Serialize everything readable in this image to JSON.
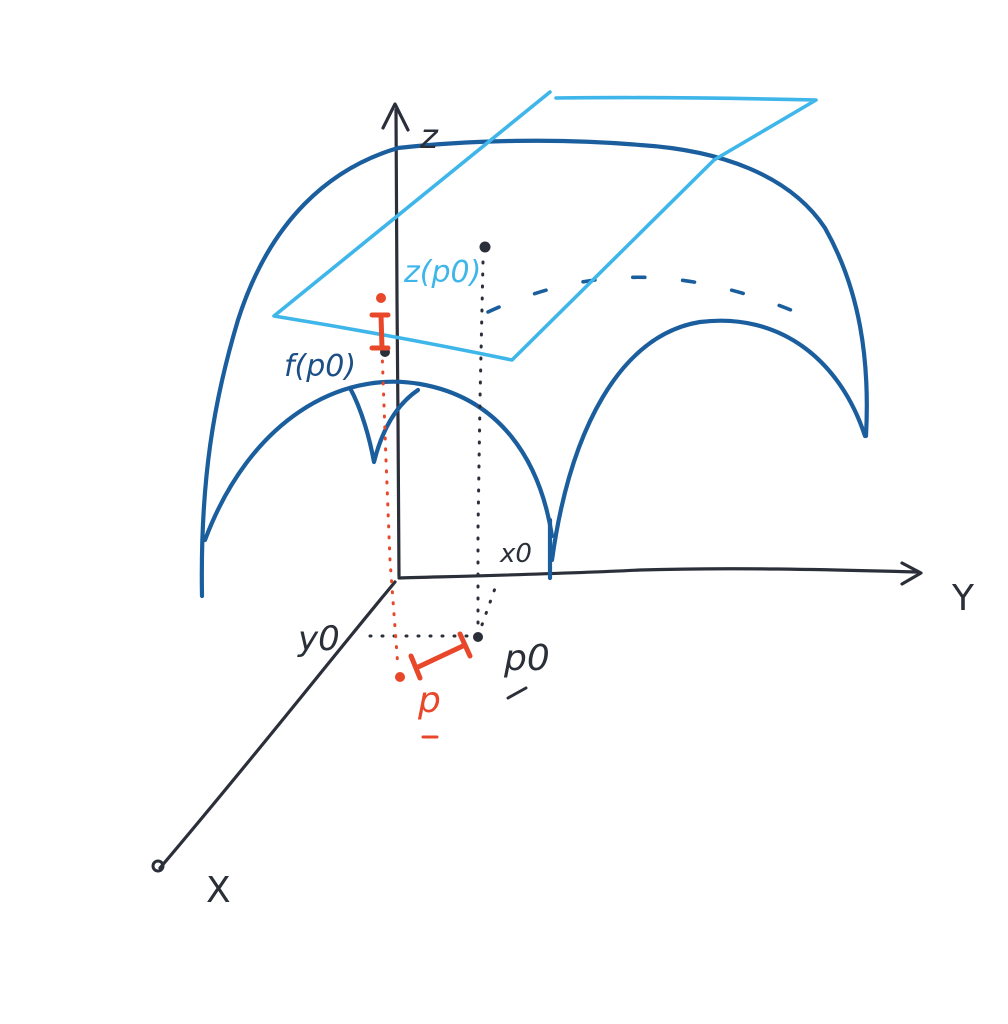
{
  "labels": {
    "z_axis": "z",
    "y_axis": "Y",
    "x_axis": "X",
    "x0": "x0",
    "y0": "y0",
    "p0": "p0",
    "p": "p",
    "f_p0": "f(p0)",
    "z_p0": "z(p0)"
  },
  "colors": {
    "axis": "#2b2f3a",
    "surface": "#1b5e9e",
    "tangent_plane": "#3fb6ea",
    "highlight": "#e8472a"
  }
}
